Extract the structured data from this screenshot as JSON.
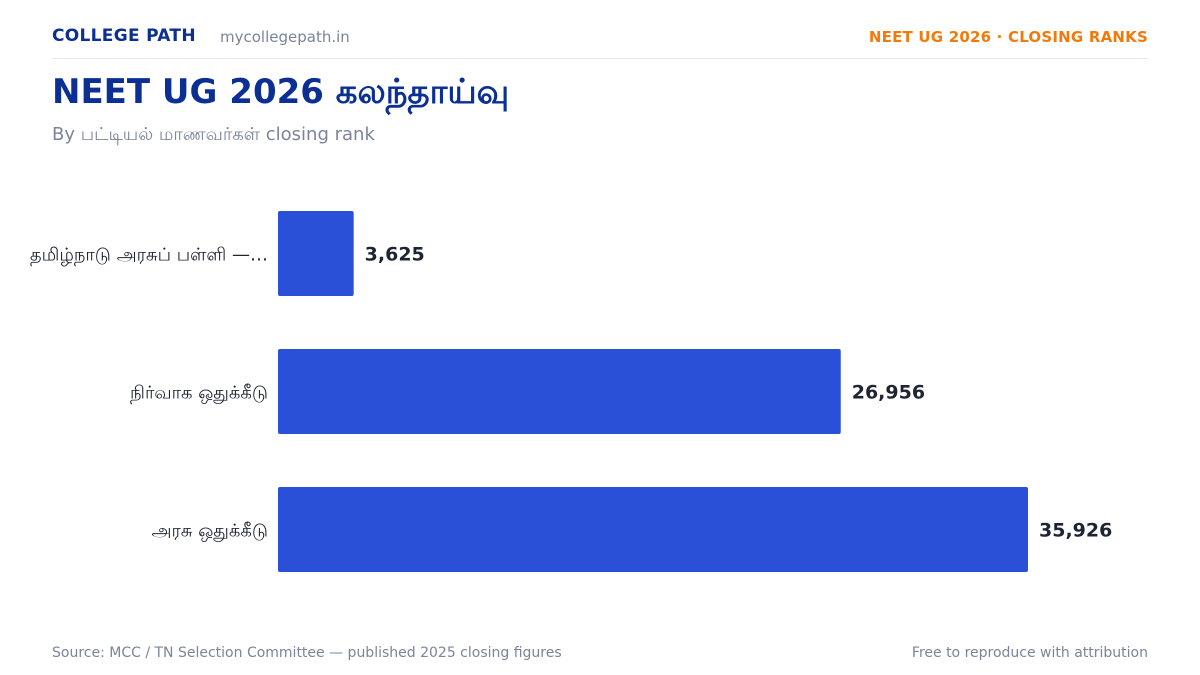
{
  "header": {
    "brand": "COLLEGE PATH",
    "site": "mycollegepath.in",
    "badge": "NEET UG 2026 · CLOSING RANKS"
  },
  "title": "NEET UG 2026 கலந்தாய்வு",
  "subtitle": "By பட்டியல் மாணவர்கள் closing rank",
  "chart_data": {
    "type": "bar",
    "orientation": "horizontal",
    "categories": [
      "தமிழ்நாடு அரசுப் பள்ளி —…",
      "நிர்வாக ஒதுக்கீடு",
      "அரசு ஒதுக்கீடு"
    ],
    "values": [
      3625,
      26956,
      35926
    ],
    "value_labels": [
      "3,625",
      "26,956",
      "35,926"
    ],
    "xlim": [
      0,
      35926
    ],
    "grid": false,
    "bar_color": "#2b50d8"
  },
  "footer": {
    "source": "Source: MCC / TN Selection Committee — published 2025 closing figures",
    "license": "Free to reproduce with attribution"
  }
}
